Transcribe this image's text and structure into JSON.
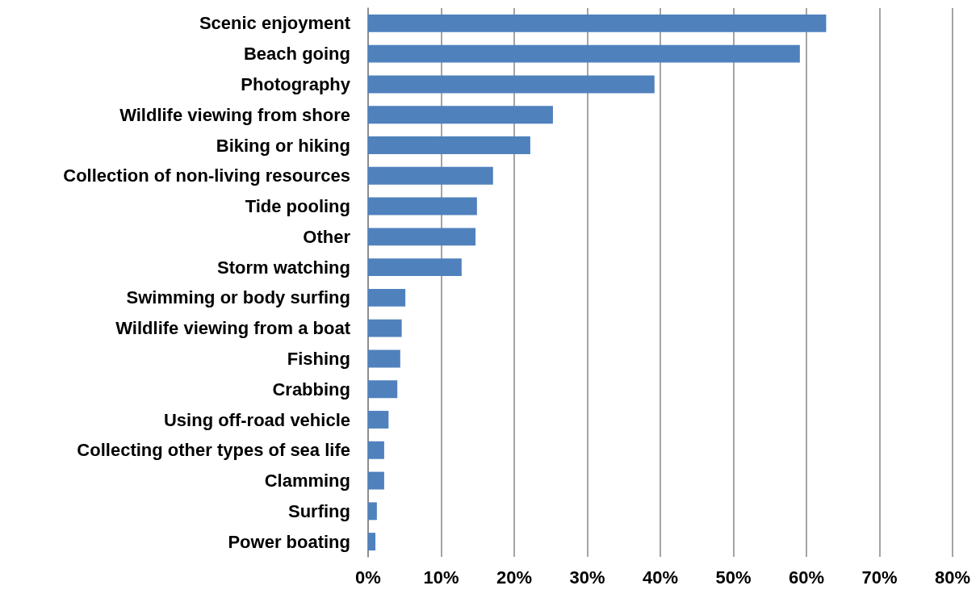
{
  "chart_data": {
    "type": "bar",
    "orientation": "horizontal",
    "categories": [
      "Scenic enjoyment",
      "Beach going",
      "Photography",
      "Wildlife viewing from shore",
      "Biking or hiking",
      "Collection of non-living resources",
      "Tide pooling",
      "Other",
      "Storm watching",
      "Swimming or body surfing",
      "Wildlife viewing from a boat",
      "Fishing",
      "Crabbing",
      "Using off-road vehicle",
      "Collecting other types of sea life",
      "Clamming",
      "Surfing",
      "Power boating"
    ],
    "values": [
      62.7,
      59.1,
      39.2,
      25.3,
      22.2,
      17.1,
      14.9,
      14.7,
      12.8,
      5.1,
      4.6,
      4.4,
      4.0,
      2.8,
      2.2,
      2.2,
      1.2,
      1.0
    ],
    "color": "#4f81bd",
    "xlim": [
      0,
      80
    ],
    "xticks": [
      {
        "value": 0,
        "label": "0%"
      },
      {
        "value": 10,
        "label": "10%"
      },
      {
        "value": 20,
        "label": "20%"
      },
      {
        "value": 30,
        "label": "30%"
      },
      {
        "value": 40,
        "label": "40%"
      },
      {
        "value": 50,
        "label": "50%"
      },
      {
        "value": 60,
        "label": "60%"
      },
      {
        "value": 70,
        "label": "70%"
      },
      {
        "value": 80,
        "label": "80%"
      }
    ],
    "grid": "x"
  }
}
